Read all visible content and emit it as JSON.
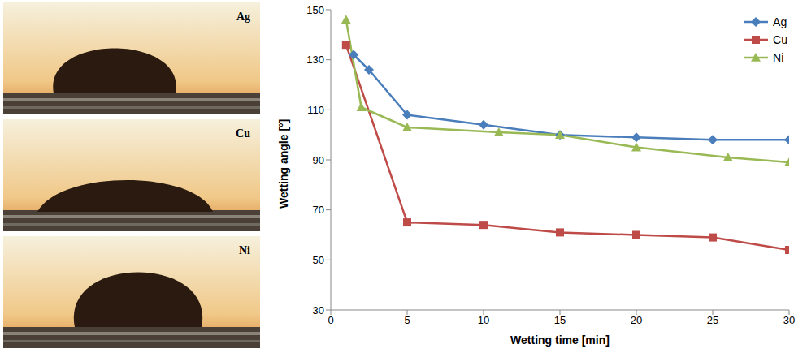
{
  "chart_data": {
    "type": "line",
    "x_label": "Wetting time  [min]",
    "y_label": "Wetting angle  [°]",
    "xlim": [
      0,
      30
    ],
    "xticks": [
      0,
      5,
      10,
      15,
      20,
      25,
      30
    ],
    "ylim": [
      30,
      150
    ],
    "yticks": [
      30,
      50,
      70,
      90,
      110,
      130,
      150
    ],
    "grid": false,
    "legend": "upper right",
    "series": [
      {
        "name": "Ag",
        "color": "#4a7ebb",
        "marker": "diamond",
        "x": [
          1.5,
          2.5,
          5,
          10,
          15,
          20,
          25,
          30
        ],
        "values": [
          132,
          126,
          108,
          104,
          100,
          99,
          98,
          98
        ]
      },
      {
        "name": "Cu",
        "color": "#be4b48",
        "marker": "square",
        "x": [
          1,
          5,
          10,
          15,
          20,
          25,
          30
        ],
        "values": [
          136,
          65,
          64,
          61,
          60,
          59,
          54
        ]
      },
      {
        "name": "Ni",
        "color": "#98b954",
        "marker": "triangle",
        "x": [
          1,
          2,
          5,
          11,
          15,
          20,
          26,
          30
        ],
        "values": [
          146,
          111,
          103,
          101,
          100,
          95,
          91,
          89
        ]
      }
    ]
  }
}
